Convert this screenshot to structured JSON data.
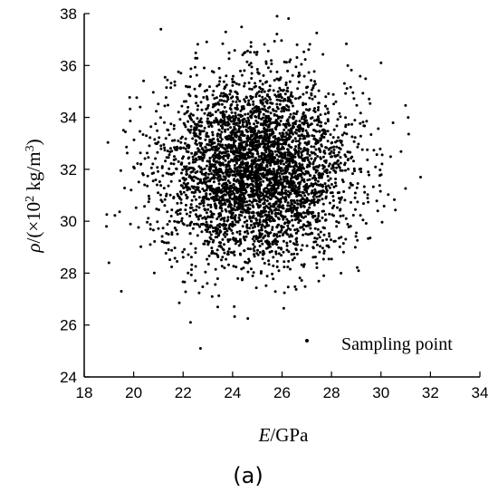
{
  "chart_data": {
    "type": "scatter",
    "xlabel_var": "E",
    "xlabel_unit": "/GPa",
    "ylabel_var": "ρ",
    "ylabel_prefix": "/(×10",
    "ylabel_exp": "2",
    "ylabel_mid": " kg/m",
    "ylabel_exp2": "3",
    "ylabel_suffix": ")",
    "xlim": [
      18,
      34
    ],
    "ylim": [
      24,
      38
    ],
    "xticks": [
      18,
      20,
      22,
      24,
      26,
      28,
      30,
      32,
      34
    ],
    "yticks": [
      24,
      26,
      28,
      30,
      32,
      34,
      36,
      38
    ],
    "legend": "Sampling point",
    "legend_position": "bottom-right",
    "marker_color": "#000000",
    "distribution": {
      "x_mean": 25.0,
      "x_std": 1.9,
      "y_mean": 32.0,
      "y_std": 1.75,
      "approx_count": 4000
    },
    "notable_points": [
      {
        "x": 21.1,
        "y": 37.4
      },
      {
        "x": 25.8,
        "y": 37.9
      },
      {
        "x": 27.0,
        "y": 25.4
      },
      {
        "x": 22.7,
        "y": 25.1
      },
      {
        "x": 22.3,
        "y": 26.1
      },
      {
        "x": 18.9,
        "y": 29.8
      },
      {
        "x": 31.6,
        "y": 31.7
      },
      {
        "x": 31.1,
        "y": 34.0
      },
      {
        "x": 30.0,
        "y": 36.1
      },
      {
        "x": 19.5,
        "y": 27.3
      },
      {
        "x": 23.4,
        "y": 26.7
      },
      {
        "x": 19.0,
        "y": 28.4
      }
    ]
  },
  "caption": "(a)"
}
